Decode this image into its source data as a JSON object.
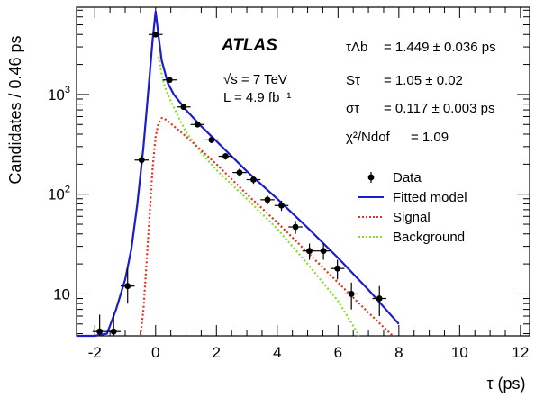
{
  "chart_data": {
    "type": "scatter",
    "xlabel": "τ (ps)",
    "ylabel": "Candidates / 0.46 ps",
    "xlim": [
      -2.6,
      12.3
    ],
    "ylim": [
      3.8,
      7500
    ],
    "yscale": "log",
    "x_ticks": [
      -2,
      0,
      2,
      4,
      6,
      8,
      10,
      12
    ],
    "x_tick_labels": [
      "-2",
      "0",
      "2",
      "4",
      "6",
      "8",
      "10",
      "12"
    ],
    "y_ticks": [
      10,
      100,
      1000
    ],
    "y_tick_labels": [
      "10",
      "10^2",
      "10^3"
    ],
    "experiment": "ATLAS",
    "energy_label": "√s = 7 TeV",
    "lumi_label": "L = 4.9 fb⁻¹",
    "fit_results": [
      {
        "symbol": "τΛb",
        "value": "= 1.449 ± 0.036 ps"
      },
      {
        "symbol": "Sτ",
        "value": "= 1.05 ± 0.02"
      },
      {
        "symbol": "στ",
        "value": "= 0.117 ± 0.003 ps"
      },
      {
        "symbol": "χ²/Ndof",
        "value": "= 1.09"
      }
    ],
    "legend": [
      {
        "name": "Data",
        "style": "marker",
        "color": "#000000"
      },
      {
        "name": "Fitted model",
        "style": "solid",
        "color": "#1c1cc8"
      },
      {
        "name": "Signal",
        "style": "dotted",
        "color": "#dd3322"
      },
      {
        "name": "Background",
        "style": "dotted",
        "color": "#88dd22"
      }
    ],
    "data_points": [
      {
        "x": -1.84,
        "y": 4.2,
        "yerr_lo": 0.4,
        "yerr_hi": 6.2
      },
      {
        "x": -1.38,
        "y": 4.2,
        "yerr_lo": 0.4,
        "yerr_hi": 6.2
      },
      {
        "x": -0.92,
        "y": 12,
        "yerr_lo": 8,
        "yerr_hi": 18
      },
      {
        "x": -0.46,
        "y": 220,
        "yerr_lo": 198,
        "yerr_hi": 244
      },
      {
        "x": 0.0,
        "y": 4000,
        "yerr_lo": 3850,
        "yerr_hi": 4150
      },
      {
        "x": 0.46,
        "y": 1400,
        "yerr_lo": 1320,
        "yerr_hi": 1480
      },
      {
        "x": 0.92,
        "y": 750,
        "yerr_lo": 710,
        "yerr_hi": 790
      },
      {
        "x": 1.38,
        "y": 500,
        "yerr_lo": 470,
        "yerr_hi": 530
      },
      {
        "x": 1.84,
        "y": 350,
        "yerr_lo": 325,
        "yerr_hi": 375
      },
      {
        "x": 2.3,
        "y": 240,
        "yerr_lo": 222,
        "yerr_hi": 258
      },
      {
        "x": 2.76,
        "y": 165,
        "yerr_lo": 150,
        "yerr_hi": 180
      },
      {
        "x": 3.22,
        "y": 140,
        "yerr_lo": 127,
        "yerr_hi": 153
      },
      {
        "x": 3.68,
        "y": 88,
        "yerr_lo": 79,
        "yerr_hi": 97
      },
      {
        "x": 4.14,
        "y": 77,
        "yerr_lo": 68,
        "yerr_hi": 86
      },
      {
        "x": 4.6,
        "y": 47,
        "yerr_lo": 40,
        "yerr_hi": 54
      },
      {
        "x": 5.06,
        "y": 27,
        "yerr_lo": 22,
        "yerr_hi": 32
      },
      {
        "x": 5.52,
        "y": 27,
        "yerr_lo": 22,
        "yerr_hi": 32
      },
      {
        "x": 5.98,
        "y": 18,
        "yerr_lo": 14,
        "yerr_hi": 22
      },
      {
        "x": 6.44,
        "y": 10,
        "yerr_lo": 7,
        "yerr_hi": 13
      },
      {
        "x": 7.36,
        "y": 9,
        "yerr_lo": 6,
        "yerr_hi": 12
      }
    ],
    "curves": {
      "fitted_model": {
        "x": [
          -2.6,
          -2.0,
          -1.6,
          -1.3,
          -1.0,
          -0.8,
          -0.6,
          -0.4,
          -0.2,
          -0.1,
          0.0,
          0.1,
          0.2,
          0.4,
          0.6,
          1.0,
          1.5,
          2.0,
          3.0,
          4.0,
          5.0,
          6.0,
          7.0,
          8.0
        ],
        "y": [
          1.2,
          2.2,
          4,
          7,
          14,
          28,
          80,
          300,
          1500,
          3500,
          6800,
          3800,
          2200,
          1300,
          1000,
          700,
          480,
          340,
          170,
          90,
          46,
          23,
          11,
          5
        ]
      },
      "signal": {
        "x": [
          -0.5,
          -0.4,
          -0.3,
          -0.2,
          -0.1,
          0.0,
          0.1,
          0.2,
          0.3,
          0.5,
          1.0,
          2.0,
          3.0,
          4.0,
          5.0,
          6.0,
          7.0,
          7.8
        ],
        "y": [
          3.8,
          7,
          20,
          60,
          180,
          380,
          520,
          580,
          570,
          510,
          380,
          200,
          100,
          52,
          26,
          13,
          6.5,
          3.8
        ]
      },
      "background": {
        "x": [
          0.1,
          0.2,
          0.3,
          0.5,
          1.0,
          1.5,
          2.0,
          3.0,
          4.0,
          5.0,
          6.0,
          6.7
        ],
        "y": [
          2400,
          1600,
          1200,
          850,
          420,
          260,
          175,
          90,
          45,
          20,
          8.5,
          3.8
        ]
      }
    }
  }
}
